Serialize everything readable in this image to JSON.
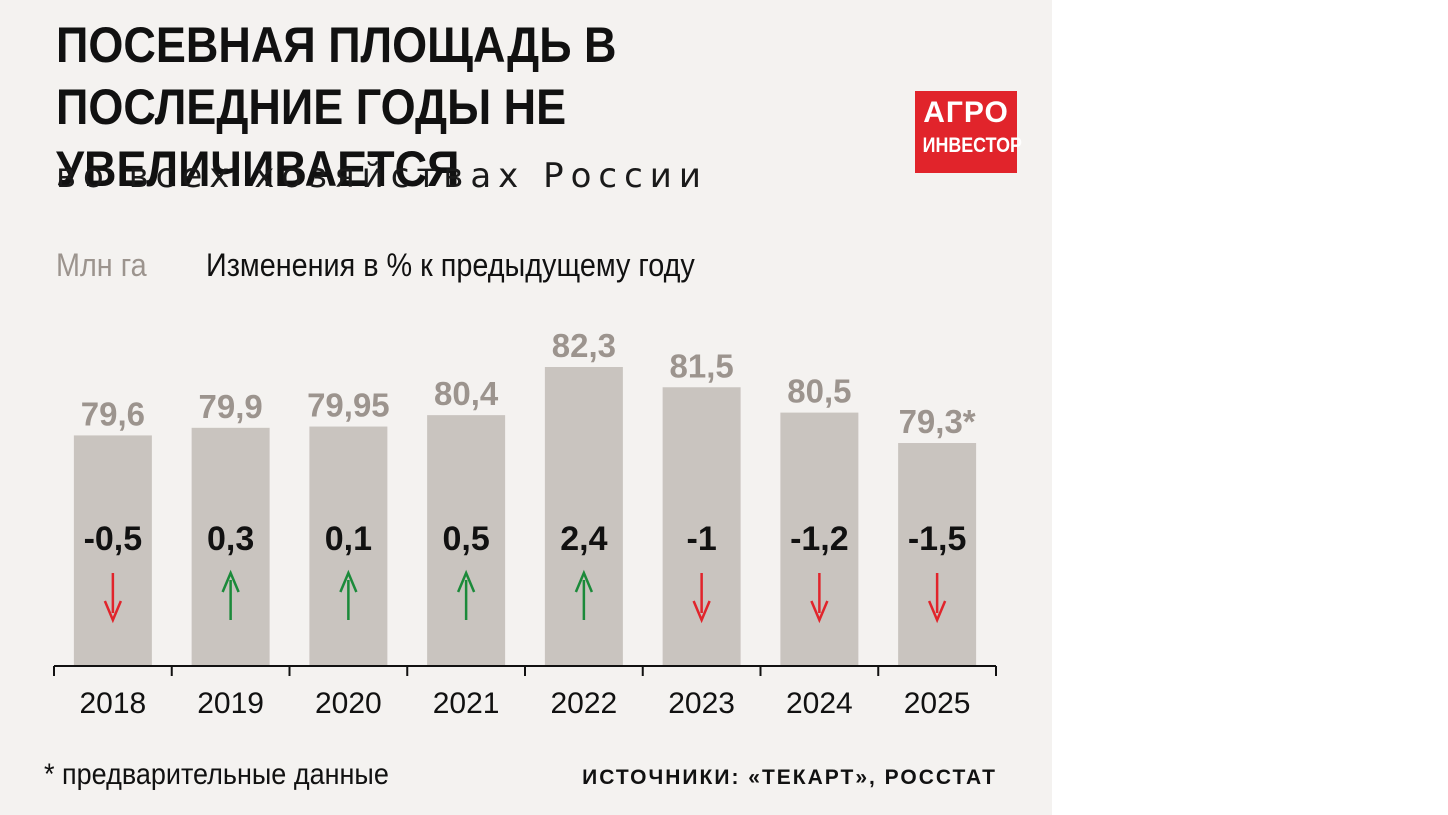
{
  "header": {
    "title": "ПОСЕВНАЯ ПЛОЩАДЬ В ПОСЛЕДНИЕ ГОДЫ НЕ УВЕЛИЧИВАЕТСЯ",
    "subtitle": "во всех хозяйствах России"
  },
  "logo": {
    "line1": "АГРО",
    "line2": "ИНВЕСТОР"
  },
  "legend": {
    "unit": "Млн га",
    "change_label": "Изменения в % к предыдущему году"
  },
  "footer": {
    "footnote": "* предварительные данные",
    "source": "ИСТОЧНИКИ: «ТЕКАРТ», РОССТАТ"
  },
  "colors": {
    "bar": "#c9c4bf",
    "value_label": "#9c948e",
    "up_arrow": "#1b8a3a",
    "down_arrow": "#e1242b",
    "logo": "#e1242b",
    "background": "#f4f2f0"
  },
  "chart_data": {
    "type": "bar",
    "categories": [
      "2018",
      "2019",
      "2020",
      "2021",
      "2022",
      "2023",
      "2024",
      "2025"
    ],
    "values": [
      79.6,
      79.9,
      79.95,
      80.4,
      82.3,
      81.5,
      80.5,
      79.3
    ],
    "value_labels": [
      "79,6",
      "79,9",
      "79,95",
      "80,4",
      "82,3",
      "81,5",
      "80,5",
      "79,3*"
    ],
    "changes": [
      -0.5,
      0.3,
      0.1,
      0.5,
      2.4,
      -1,
      -1.2,
      -1.5
    ],
    "change_labels": [
      "-0,5",
      "0,3",
      "0,1",
      "0,5",
      "2,4",
      "-1",
      "-1,2",
      "-1,5"
    ],
    "change_direction": [
      "down",
      "up",
      "up",
      "up",
      "up",
      "down",
      "down",
      "down"
    ],
    "ylabel": "Млн га",
    "ylim": [
      70.5,
      82.3
    ],
    "grid": false
  }
}
